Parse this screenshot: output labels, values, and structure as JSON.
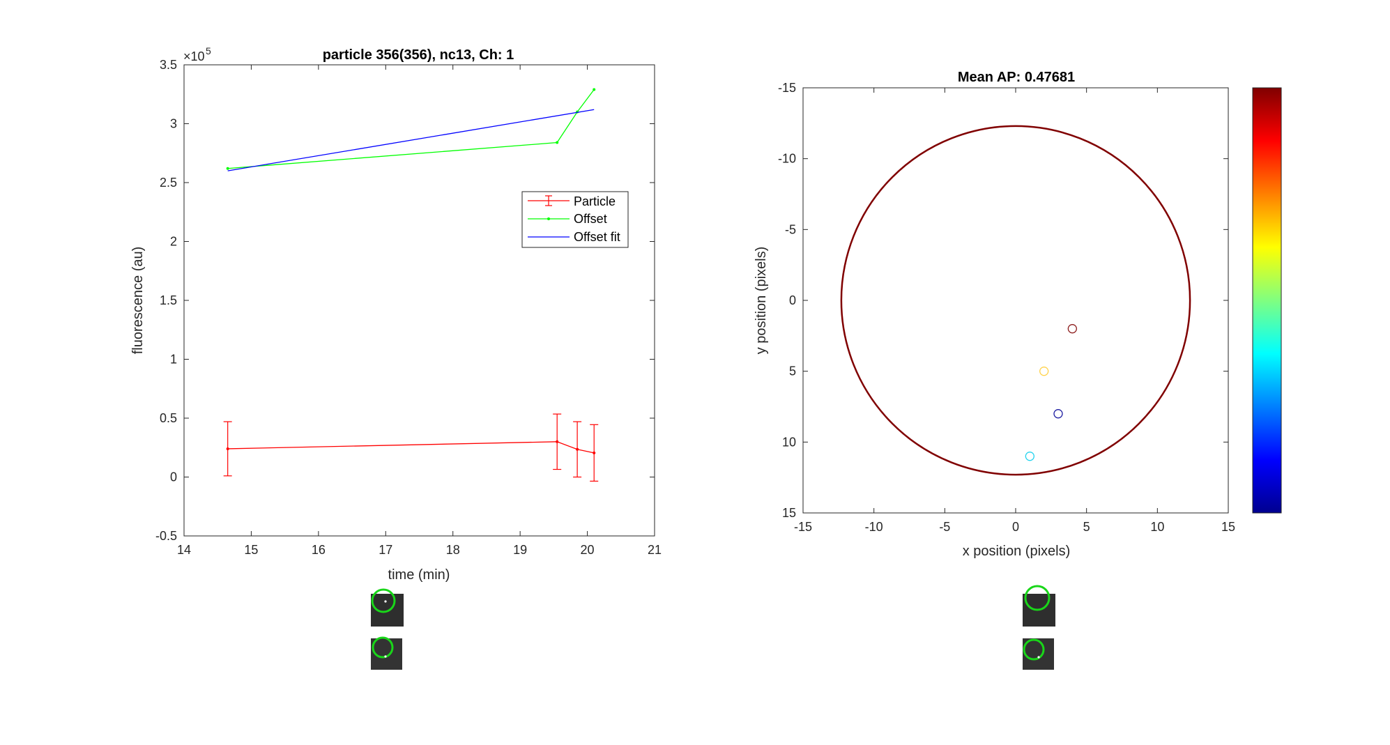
{
  "chart_data": [
    {
      "type": "line",
      "title": "particle 356(356), nc13, Ch: 1",
      "xlabel": "time (min)",
      "ylabel": "fluorescence (au)",
      "xlim": [
        14,
        21
      ],
      "ylim": [
        -0.5,
        3.5
      ],
      "y_exponent_label": "×10",
      "y_exponent": "5",
      "xticks": [
        14,
        15,
        16,
        17,
        18,
        19,
        20,
        21
      ],
      "xtick_labels": [
        "14",
        "15",
        "16",
        "17",
        "18",
        "19",
        "20",
        "21"
      ],
      "yticks": [
        -0.5,
        0,
        0.5,
        1,
        1.5,
        2,
        2.5,
        3,
        3.5
      ],
      "ytick_labels": [
        "-0.5",
        "0",
        "0.5",
        "1",
        "1.5",
        "2",
        "2.5",
        "3",
        "3.5"
      ],
      "grid": false,
      "legend_position": "right",
      "series": [
        {
          "name": "Particle",
          "color": "#ff0000",
          "x": [
            14.65,
            19.55,
            19.85,
            20.1
          ],
          "y": [
            0.24,
            0.3,
            0.235,
            0.205
          ],
          "err": [
            0.23,
            0.235,
            0.235,
            0.24
          ]
        },
        {
          "name": "Offset",
          "color": "#00ff00",
          "x": [
            14.65,
            19.55,
            19.85,
            20.1
          ],
          "y": [
            2.62,
            2.84,
            3.1,
            3.29
          ]
        },
        {
          "name": "Offset fit",
          "color": "#0000ff",
          "x": [
            14.65,
            20.1
          ],
          "y": [
            2.6,
            3.12
          ]
        }
      ]
    },
    {
      "type": "scatter",
      "title": "Mean AP: 0.47681",
      "xlabel": "x position (pixels)",
      "ylabel": "y position (pixels)",
      "xlim": [
        -15,
        15
      ],
      "ylim": [
        -15,
        15
      ],
      "y_reversed": true,
      "xticks": [
        -15,
        -10,
        -5,
        0,
        5,
        10,
        15
      ],
      "xtick_labels": [
        "-15",
        "-10",
        "-5",
        "0",
        "5",
        "10",
        "15"
      ],
      "yticks": [
        -15,
        -10,
        -5,
        0,
        5,
        10,
        15
      ],
      "ytick_labels": [
        "-15",
        "-10",
        "-5",
        "0",
        "5",
        "10",
        "15"
      ],
      "grid": false,
      "colorbar": "jet",
      "circle": {
        "cx": 0,
        "cy": 0,
        "r": 12.3,
        "color": "#800000"
      },
      "points": [
        {
          "x": 4,
          "y": 2,
          "color": "#8b1a1a"
        },
        {
          "x": 2,
          "y": 5,
          "color": "#ffd24a"
        },
        {
          "x": 3,
          "y": 8,
          "color": "#1a1aa0"
        },
        {
          "x": 1,
          "y": 11,
          "color": "#22d3ee"
        }
      ]
    }
  ]
}
